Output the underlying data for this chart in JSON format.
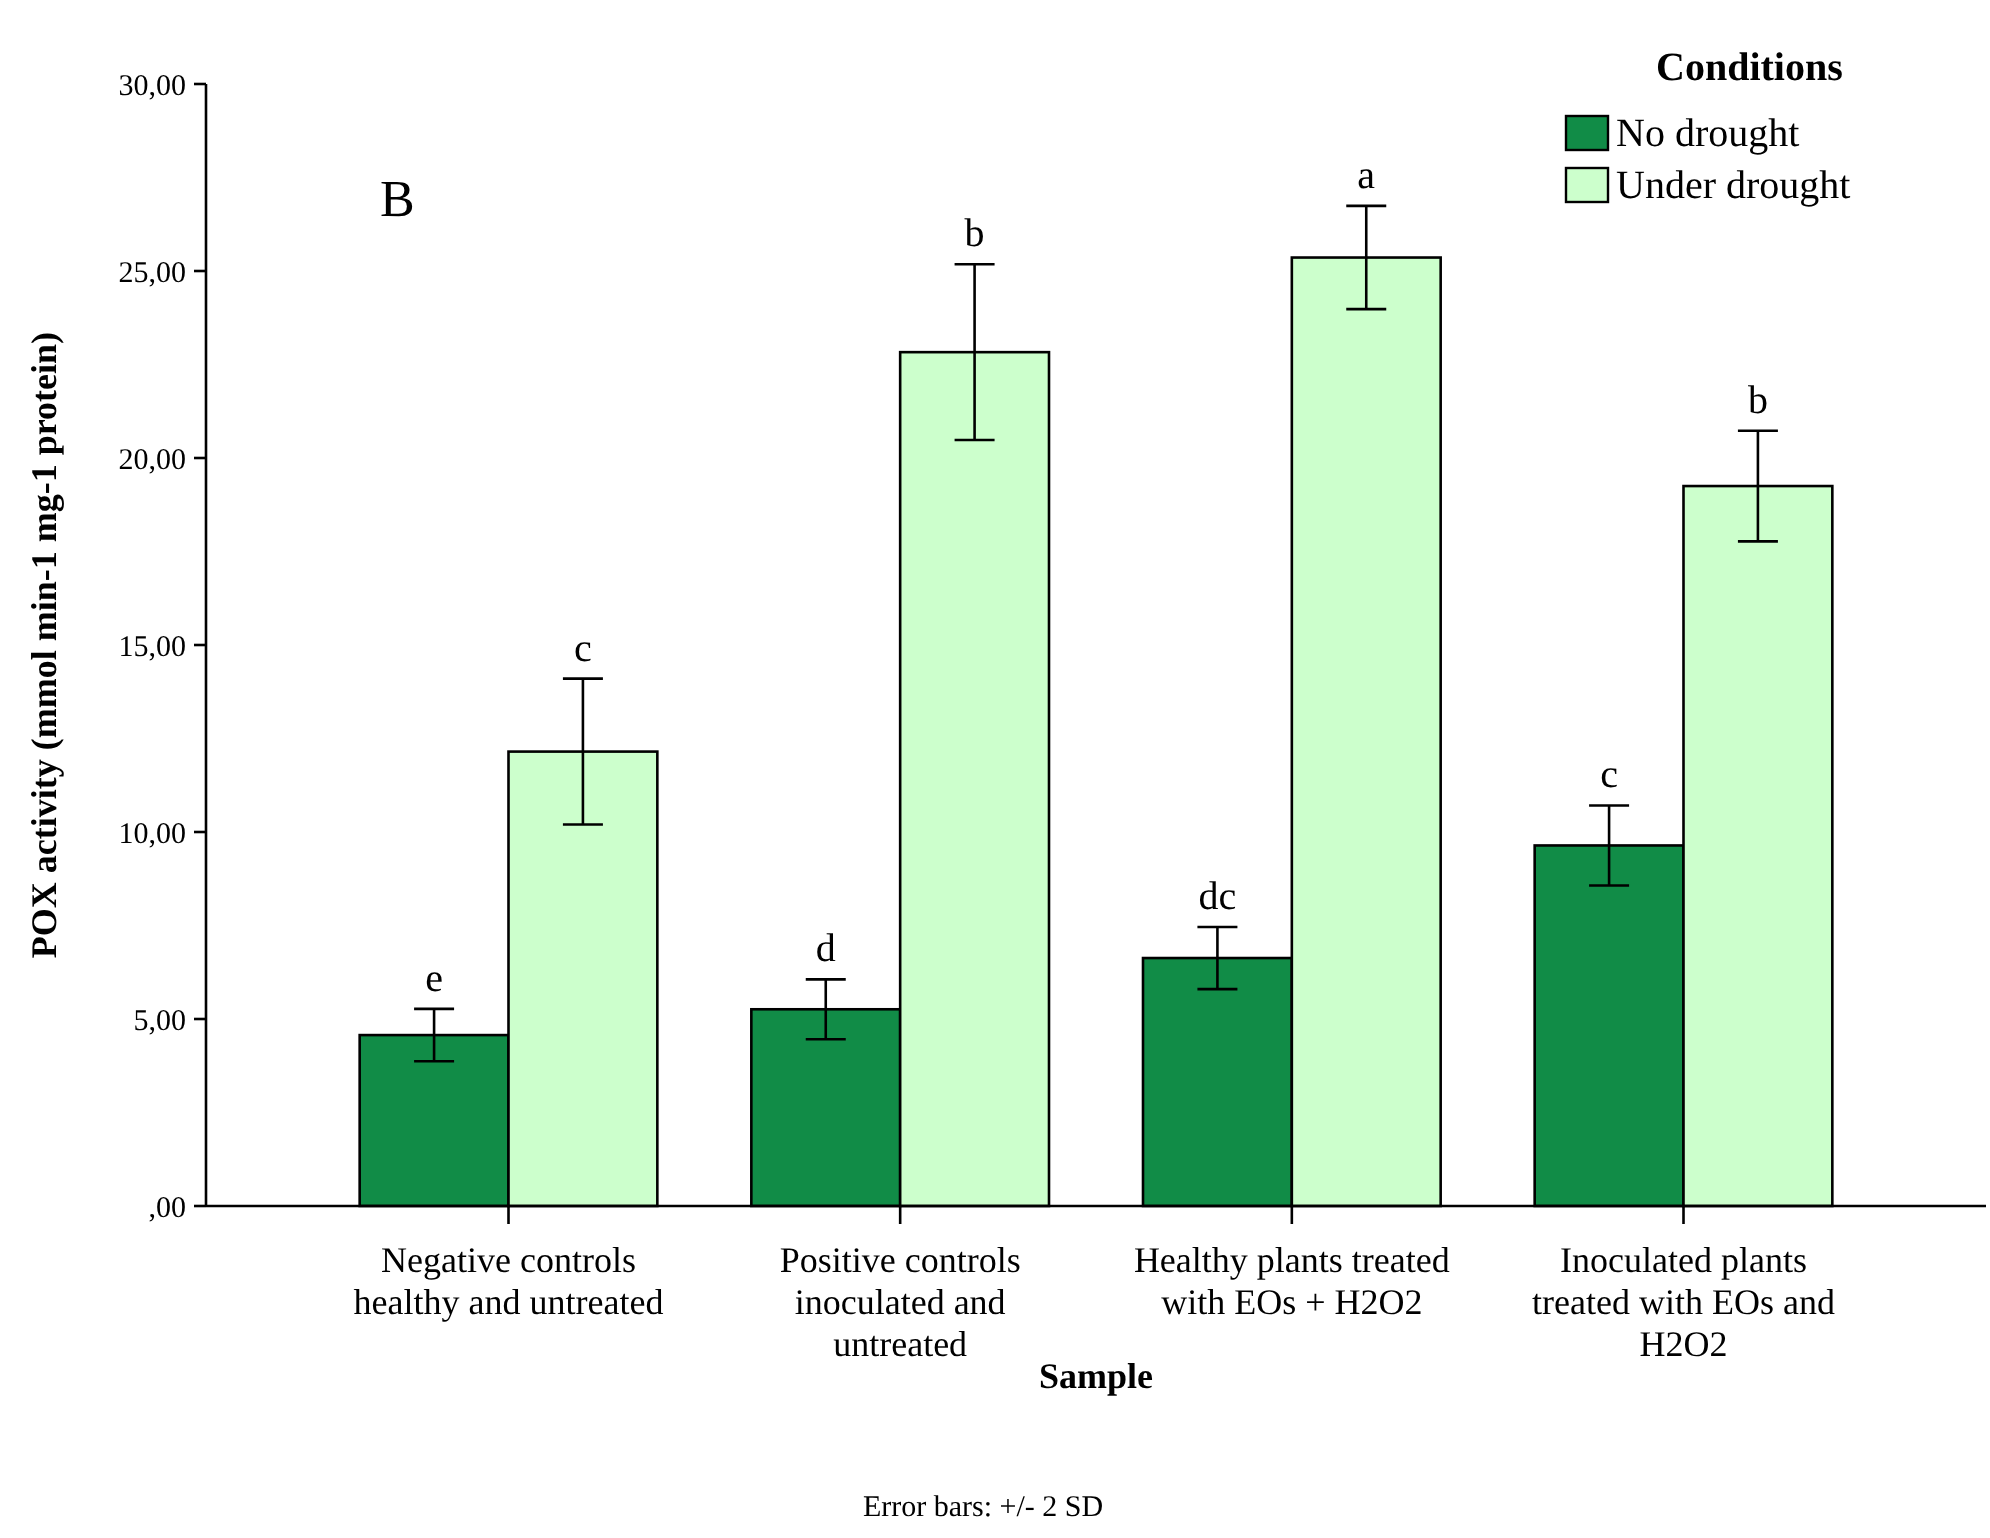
{
  "chart_data": {
    "type": "bar",
    "xlabel": "Sample",
    "ylabel": "POX activity (mmol min-1 mg-1 protein)",
    "legend_title": "Conditions",
    "legend": "top right",
    "grid": false,
    "categories": [
      "Negative controls healthy and untreated",
      "Positive controls inoculated and untreated",
      "Healthy plants treated with EOs + H2O2",
      "Inoculated plants treated with EOs and H2O2"
    ],
    "series": [
      {
        "name": "No drought",
        "color": "#118c47",
        "values": [
          4.57,
          5.26,
          6.63,
          9.64
        ],
        "errors": [
          0.7,
          0.8,
          0.83,
          1.07
        ]
      },
      {
        "name": "Under drought",
        "color": "#ccffcc",
        "values": [
          12.15,
          22.83,
          25.36,
          19.25
        ],
        "errors": [
          1.95,
          2.35,
          1.38,
          1.48
        ]
      }
    ],
    "ylim": [
      0,
      30
    ],
    "yticks": [
      {
        "value": 0,
        "label": ",00"
      },
      {
        "value": 5,
        "label": "5,00"
      },
      {
        "value": 10,
        "label": "10,00"
      },
      {
        "value": 15,
        "label": "15,00"
      },
      {
        "value": 20,
        "label": "20,00"
      },
      {
        "value": 25,
        "label": "25,00"
      },
      {
        "value": 30,
        "label": "30,00"
      }
    ],
    "annotations": [
      "B",
      {
        "text": "e",
        "x": "Negative controls healthy and untreated",
        "y": 4.57
      },
      {
        "text": "c",
        "x": "Negative controls healthy and untreated",
        "y": 12.15
      },
      {
        "text": "d",
        "x": "Positive controls inoculated and untreated",
        "y": 5.26
      },
      {
        "text": "b",
        "x": "Positive controls inoculated and untreated",
        "y": 22.83
      },
      {
        "text": "dc",
        "x": "Healthy plants treated with EOs + H2O2",
        "y": 6.63
      },
      {
        "text": "a",
        "x": "Healthy plants treated with EOs + H2O2",
        "y": 25.36
      },
      {
        "text": "c",
        "x": "Inoculated plants treated with EOs and H2O2",
        "y": 9.64
      },
      {
        "text": "b",
        "x": "Inoculated plants treated with EOs and H2O2",
        "y": 19.25
      },
      "Error bars: +/- 2 SD"
    ]
  }
}
